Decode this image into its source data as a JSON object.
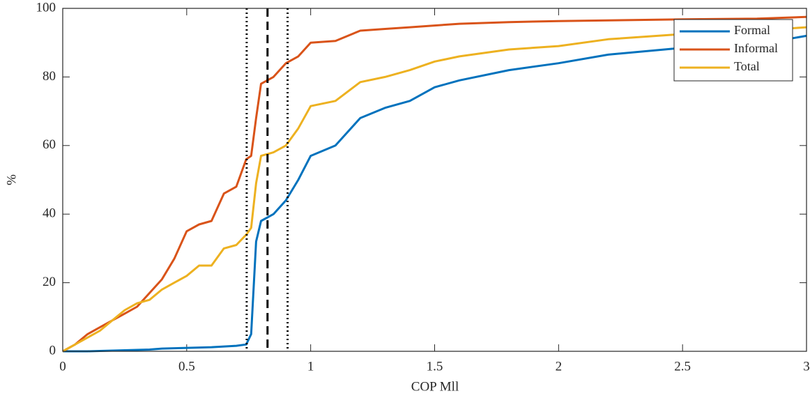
{
  "chart_data": {
    "type": "line",
    "xlabel": "COP Mll",
    "ylabel": "%",
    "x": [
      0,
      0.05,
      0.1,
      0.15,
      0.2,
      0.25,
      0.3,
      0.35,
      0.4,
      0.45,
      0.5,
      0.55,
      0.6,
      0.65,
      0.7,
      0.74,
      0.76,
      0.78,
      0.8,
      0.85,
      0.9,
      0.95,
      1.0,
      1.1,
      1.2,
      1.3,
      1.4,
      1.5,
      1.6,
      1.8,
      2.0,
      2.2,
      2.5,
      2.8,
      3.0
    ],
    "series": [
      {
        "name": "Formal",
        "color": "#0072BD",
        "values": [
          0,
          0,
          0,
          0.1,
          0.2,
          0.3,
          0.4,
          0.5,
          0.8,
          0.9,
          1,
          1.1,
          1.2,
          1.4,
          1.6,
          2,
          5,
          32,
          38,
          40,
          44,
          50,
          57,
          60,
          68,
          71,
          73,
          77,
          79,
          82,
          84,
          86.5,
          88.5,
          89.5,
          92
        ]
      },
      {
        "name": "Informal",
        "color": "#D95319",
        "values": [
          0,
          2,
          5,
          7,
          9,
          11,
          13,
          17,
          21,
          27,
          35,
          37,
          38,
          46,
          48,
          56,
          57,
          68,
          78,
          80,
          84,
          86,
          90,
          90.5,
          93.5,
          94,
          94.5,
          95,
          95.5,
          96,
          96.3,
          96.5,
          96.8,
          97,
          97.5
        ]
      },
      {
        "name": "Total",
        "color": "#EDB120",
        "values": [
          0,
          2,
          4,
          6,
          9,
          12,
          14,
          15,
          18,
          20,
          22,
          25,
          25,
          30,
          31,
          34,
          36,
          49,
          57,
          58,
          60,
          65,
          71.5,
          73,
          78.5,
          80,
          82,
          84.5,
          86,
          88,
          89,
          91,
          92.5,
          93.5,
          94.5
        ]
      }
    ],
    "reference_lines": [
      {
        "x": 0.742,
        "style": "dotted"
      },
      {
        "x": 0.826,
        "style": "dashed"
      },
      {
        "x": 0.907,
        "style": "dotted"
      }
    ],
    "xlim": [
      0,
      3
    ],
    "ylim": [
      0,
      100
    ],
    "xticks": [
      0,
      0.5,
      1,
      1.5,
      2,
      2.5,
      3
    ],
    "yticks": [
      0,
      20,
      40,
      60,
      80,
      100
    ],
    "legend": "top-right",
    "grid": false
  }
}
